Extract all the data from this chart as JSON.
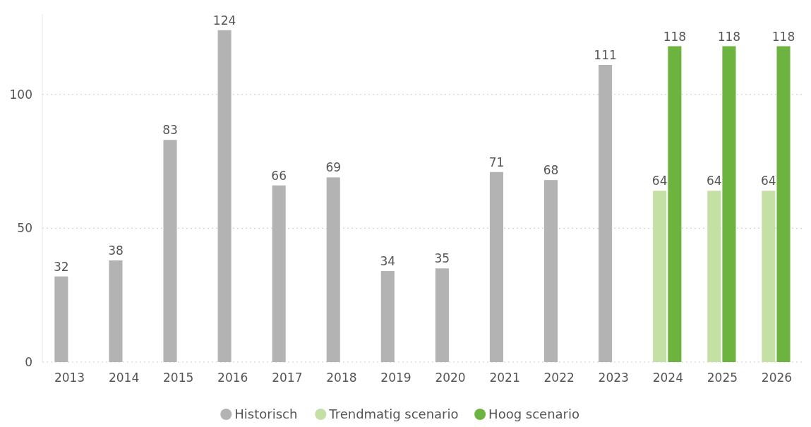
{
  "chart_data": {
    "type": "bar",
    "categories": [
      "2013",
      "2014",
      "2015",
      "2016",
      "2017",
      "2018",
      "2019",
      "2020",
      "2021",
      "2022",
      "2023",
      "2024",
      "2025",
      "2026"
    ],
    "series": [
      {
        "name": "Historisch",
        "color": "#b3b3b3",
        "values": [
          32,
          38,
          83,
          124,
          66,
          69,
          34,
          35,
          71,
          68,
          111,
          null,
          null,
          null
        ]
      },
      {
        "name": "Trendmatig scenario",
        "color": "#c5e0a5",
        "values": [
          null,
          null,
          null,
          null,
          null,
          null,
          null,
          null,
          null,
          null,
          null,
          64,
          64,
          64
        ]
      },
      {
        "name": "Hoog scenario",
        "color": "#6db33f",
        "values": [
          null,
          null,
          null,
          null,
          null,
          null,
          null,
          null,
          null,
          null,
          null,
          118,
          118,
          118
        ]
      }
    ],
    "ylim": [
      0,
      130
    ],
    "yticks": [
      0,
      50,
      100
    ],
    "grid": "y",
    "legend": "bottom",
    "data_labels": true
  }
}
